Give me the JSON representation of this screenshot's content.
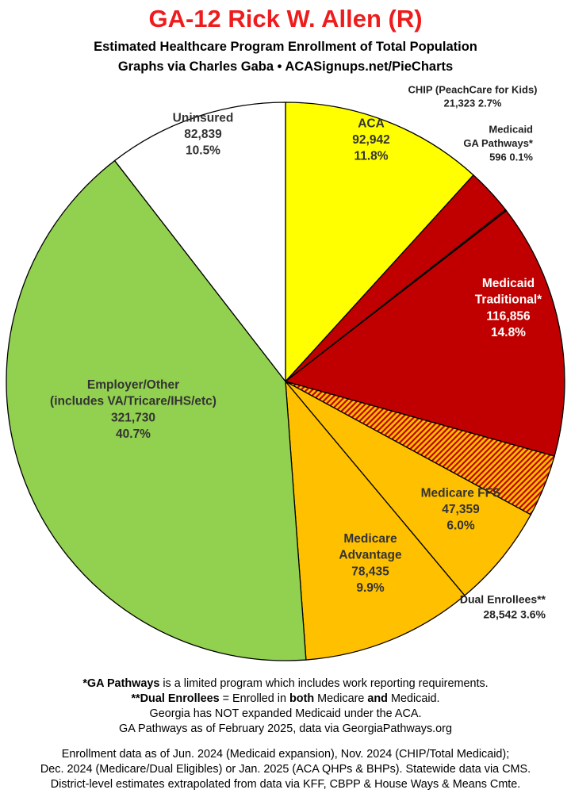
{
  "header": {
    "title": "GA-12 Rick W. Allen (R)",
    "subtitle1": "Estimated Healthcare Program Enrollment of Total Population",
    "subtitle2": "Graphs via Charles Gaba  •  ACASignups.net/PieCharts"
  },
  "chart_data": {
    "type": "pie",
    "title": "GA-12 Rick W. Allen (R)",
    "start_angle_deg": 0,
    "direction": "clockwise",
    "slices": [
      {
        "label_lines": [
          "ACA"
        ],
        "value": 92942,
        "value_text": "92,942",
        "pct": "11.8%",
        "color": "#ffff00",
        "text_color": "#333333",
        "hatched": false
      },
      {
        "label_lines": [
          "CHIP (PeachCare for Kids)"
        ],
        "value": 21323,
        "value_text": "21,323",
        "pct": "2.7%",
        "color": "#c00000",
        "text_color": "#222222",
        "hatched": false
      },
      {
        "label_lines": [
          "Medicaid",
          "GA Pathways*"
        ],
        "value": 596,
        "value_text": "596",
        "pct": "0.1%",
        "color": "#c00000",
        "text_color": "#222222",
        "hatched": false
      },
      {
        "label_lines": [
          "Medicaid",
          "Traditional*"
        ],
        "value": 116856,
        "value_text": "116,856",
        "pct": "14.8%",
        "color": "#c00000",
        "text_color": "#ffffff",
        "hatched": false
      },
      {
        "label_lines": [
          "Dual Enrollees**"
        ],
        "value": 28542,
        "value_text": "28,542",
        "pct": "3.6%",
        "color": "#ffc000",
        "stripe_color": "#c00000",
        "text_color": "#222222",
        "hatched": true
      },
      {
        "label_lines": [
          "Medicare FFS"
        ],
        "value": 47359,
        "value_text": "47,359",
        "pct": "6.0%",
        "color": "#ffc000",
        "text_color": "#333333",
        "hatched": false
      },
      {
        "label_lines": [
          "Medicare",
          "Advantage"
        ],
        "value": 78435,
        "value_text": "78,435",
        "pct": "9.9%",
        "color": "#ffc000",
        "text_color": "#333333",
        "hatched": false
      },
      {
        "label_lines": [
          "Employer/Other",
          "(includes VA/Tricare/IHS/etc)"
        ],
        "value": 321730,
        "value_text": "321,730",
        "pct": "40.7%",
        "color": "#92d050",
        "text_color": "#333333",
        "hatched": false
      },
      {
        "label_lines": [
          "Uninsured"
        ],
        "value": 82839,
        "value_text": "82,839",
        "pct": "10.5%",
        "color": "#ffffff",
        "text_color": "#333333",
        "hatched": false
      }
    ]
  },
  "footnotes": {
    "line1_bold": "*GA Pathways",
    "line1_rest": " is a limited program which includes work reporting requirements.",
    "line2_bold": "**Dual Enrollees",
    "line2_mid1": " = Enrolled in ",
    "line2_bold2": "both",
    "line2_mid2": " Medicare ",
    "line2_bold3": "and",
    "line2_rest": " Medicaid.",
    "line3": "Georgia has NOT expanded Medicaid under the ACA.",
    "line4": "GA Pathways as of February 2025, data via GeorgiaPathways.org"
  },
  "sources": {
    "line1": "Enrollment data as of Jun. 2024 (Medicaid expansion), Nov. 2024 (CHIP/Total Medicaid);",
    "line2": "Dec. 2024 (Medicare/Dual Eligibles) or Jan. 2025 (ACA QHPs & BHPs). Statewide data via CMS.",
    "line3": "District-level estimates extrapolated from data via KFF, CBPP & House Ways & Means Cmte."
  }
}
